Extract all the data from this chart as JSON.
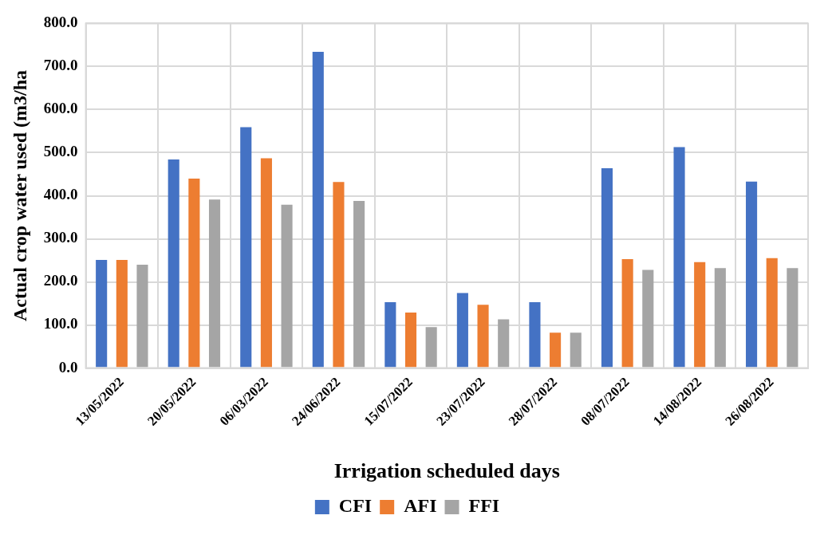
{
  "chart_data": {
    "type": "bar",
    "xlabel": "Irrigation scheduled days",
    "ylabel": "Actual crop water used (m3/ha",
    "categories": [
      "13/05/2022",
      "20/05/2022",
      "06/03/2022",
      "24/06/2022",
      "15/07/2022",
      "23/07/2022",
      "28/07/2022",
      "08/07/2022",
      "14/08/2022",
      "26/08/2022"
    ],
    "series": [
      {
        "name": "CFI",
        "color": "#4472c4",
        "values": [
          251,
          484,
          559,
          734,
          153,
          174,
          153,
          464,
          513,
          433
        ]
      },
      {
        "name": "AFI",
        "color": "#ed7d31",
        "values": [
          251,
          440,
          487,
          432,
          129,
          147,
          82,
          253,
          246,
          255
        ]
      },
      {
        "name": "FFI",
        "color": "#a5a5a5",
        "values": [
          240,
          391,
          379,
          388,
          95,
          113,
          82,
          228,
          232,
          232
        ]
      }
    ],
    "ylim": [
      0,
      800
    ],
    "yticks": [
      {
        "value": 0,
        "label": "0.0"
      },
      {
        "value": 100,
        "label": "100.0"
      },
      {
        "value": 200,
        "label": "200.0"
      },
      {
        "value": 300,
        "label": "300.0"
      },
      {
        "value": 400,
        "label": "400.0"
      },
      {
        "value": 500,
        "label": "500.0"
      },
      {
        "value": 600,
        "label": "600.0"
      },
      {
        "value": 700,
        "label": "700.0"
      },
      {
        "value": 800,
        "label": "800.0"
      }
    ],
    "grid": true,
    "legend": "bottom"
  }
}
